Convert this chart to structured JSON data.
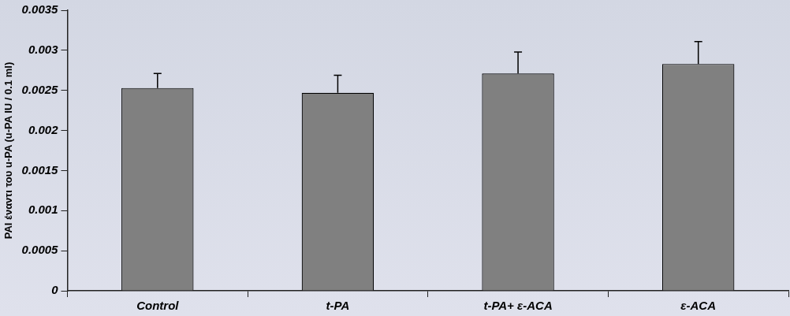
{
  "chart_data": {
    "type": "bar",
    "ylabel": "PAI έναντι του u-PA (u-PA IU / 0.1 ml)",
    "categories": [
      "Control",
      "t-PA",
      "t-PA+ ε-ACA",
      "ε-ACA"
    ],
    "values": [
      0.00253,
      0.00247,
      0.00271,
      0.00283
    ],
    "errors": [
      [
        0.00253,
        0.00271
      ],
      [
        0.00247,
        0.00269
      ],
      [
        0.00271,
        0.00298
      ],
      [
        0.00283,
        0.00311
      ]
    ],
    "color": "#808080",
    "ylim": [
      0,
      0.0035
    ],
    "yticks": [
      0,
      0.0005,
      0.001,
      0.0015,
      0.002,
      0.0025,
      0.003,
      0.0035
    ],
    "grid": false,
    "legend": false
  }
}
